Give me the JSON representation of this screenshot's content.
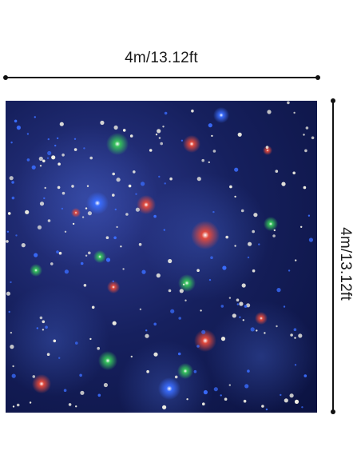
{
  "dimensions": {
    "width_label": "4m/13.12ft",
    "height_label": "4m/13.12ft"
  },
  "colors": {
    "background": "#ffffff",
    "line": "#111111",
    "panel_base": "#16205e",
    "star_white": "#f4f2e6",
    "star_blue": "#3a6dff",
    "star_green": "#36c85a",
    "star_red": "#e84a3a"
  }
}
